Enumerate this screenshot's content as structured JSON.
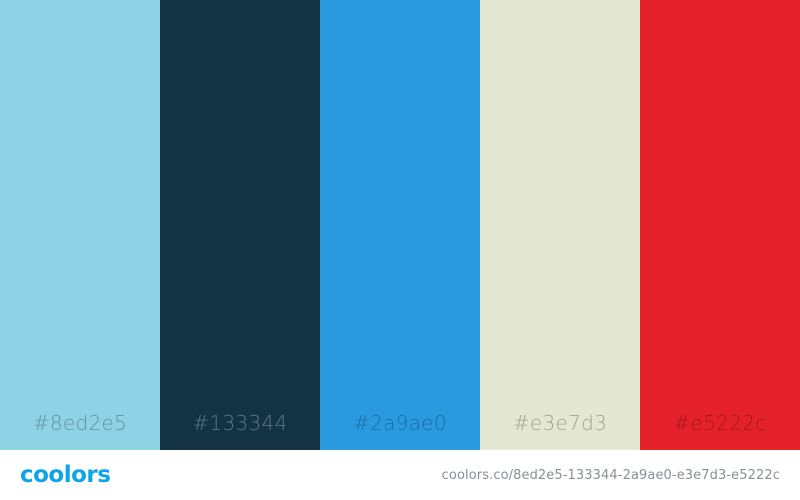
{
  "palette": {
    "swatches": [
      {
        "hex_label": "#8ed2e5",
        "color": "#8ed2e5",
        "tone": "light"
      },
      {
        "hex_label": "#133344",
        "color": "#133344",
        "tone": "dark"
      },
      {
        "hex_label": "#2a9ae0",
        "color": "#2a9ae0",
        "tone": "light"
      },
      {
        "hex_label": "#e3e7d3",
        "color": "#e3e7d3",
        "tone": "light"
      },
      {
        "hex_label": "#e5222c",
        "color": "#e5222c",
        "tone": "light"
      }
    ]
  },
  "footer": {
    "logo_text": "coolors",
    "logo_color": "#0ea5e8",
    "url": "coolors.co/8ed2e5-133344-2a9ae0-e3e7d3-e5222c"
  }
}
